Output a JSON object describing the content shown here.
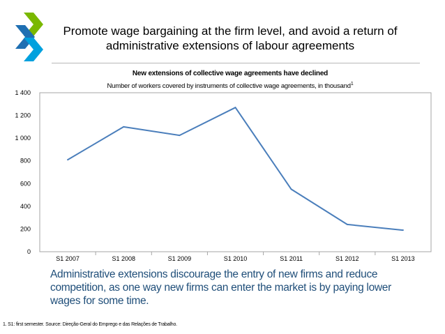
{
  "slide": {
    "title": "Promote wage bargaining at the firm level, and avoid a return of administrative extensions of labour agreements",
    "caption": "Administrative extensions discourage the entry of new firms and reduce competition, as one way new firms can enter the market is by paying lower wages for some time.",
    "footnote": "1. S1: first semester. Source: Direção-Geral do Emprego e das Relações de Trabalho.",
    "logo_colors": [
      "#7ab800",
      "#1f6fb2",
      "#00a1de"
    ]
  },
  "chart_data": {
    "type": "line",
    "title": "New extensions of collective wage agreements have declined",
    "subtitle": "Number of workers covered by instruments of collective wage agreements, in thousand",
    "subtitle_note": "1",
    "categories": [
      "S1 2007",
      "S1 2008",
      "S1 2009",
      "S1 2010",
      "S1 2011",
      "S1 2012",
      "S1 2013"
    ],
    "series": [
      {
        "values": [
          810,
          1100,
          1025,
          1270,
          550,
          240,
          190
        ],
        "color": "#4a7ebb"
      }
    ],
    "ylim": [
      0,
      1400
    ],
    "yticks": [
      0,
      200,
      400,
      600,
      800,
      1000,
      1200,
      1400
    ],
    "ytick_labels": [
      "0",
      "200",
      "400",
      "600",
      "800",
      "1 000",
      "1 200",
      "1 400"
    ],
    "grid": false,
    "legend": "none"
  }
}
